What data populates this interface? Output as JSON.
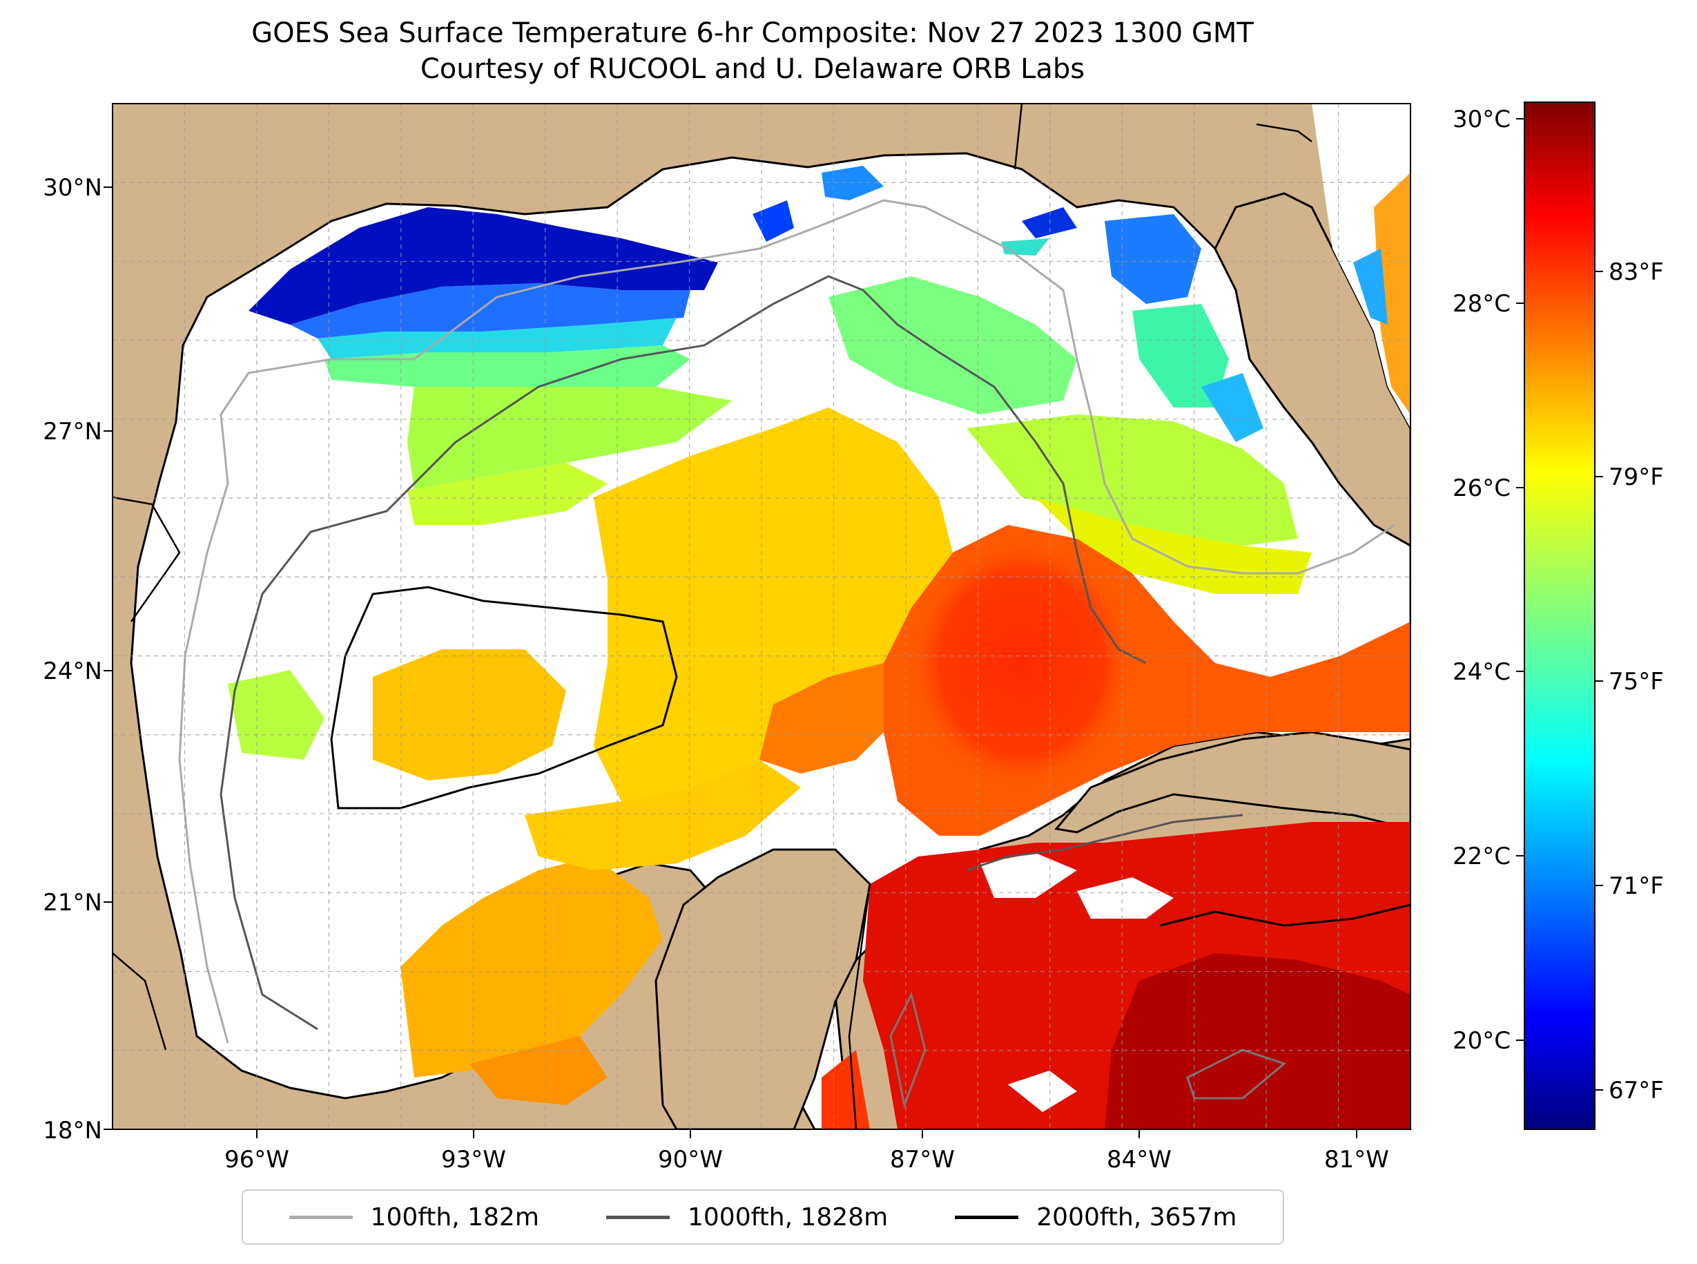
{
  "title": {
    "line1": "GOES Sea Surface Temperature 6-hr Composite: Nov 27 2023 1300 GMT",
    "line2": "Courtesy of RUCOOL and U. Delaware ORB Labs"
  },
  "map": {
    "lon_range": [
      -98,
      -80
    ],
    "lat_range": [
      18,
      31
    ],
    "lat_ticks": [
      "30°N",
      "27°N",
      "24°N",
      "21°N",
      "18°N"
    ],
    "lon_ticks": [
      "96°W",
      "93°W",
      "90°W",
      "87°W",
      "84°W",
      "81°W"
    ],
    "gridlines": true,
    "colors": {
      "land": "#d2b48c",
      "cloud_gap": "#ffffff",
      "coast": "#000000"
    }
  },
  "colorbar": {
    "colormap": "jet",
    "celsius_ticks": [
      "30°C",
      "28°C",
      "26°C",
      "24°C",
      "22°C",
      "20°C"
    ],
    "fahrenheit_ticks": [
      "83°F",
      "79°F",
      "75°F",
      "71°F",
      "67°F"
    ]
  },
  "legend": {
    "position": "bottom",
    "items": [
      {
        "label": "100fth, 182m",
        "color": "#aaaaaa"
      },
      {
        "label": "1000fth, 1828m",
        "color": "#555555"
      },
      {
        "label": "2000fth, 3657m",
        "color": "#000000"
      }
    ]
  }
}
